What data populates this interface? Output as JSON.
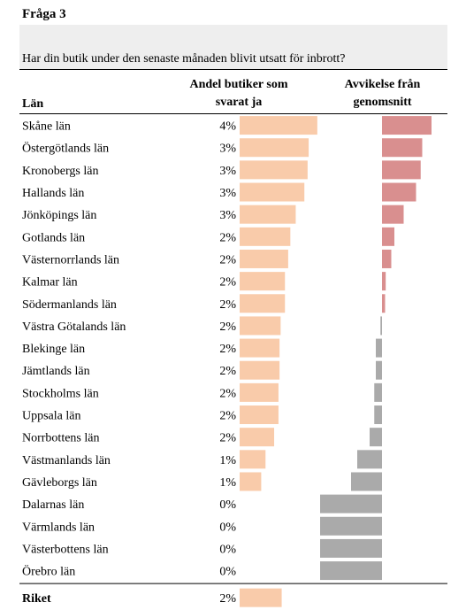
{
  "question_no": "Fråga 3",
  "question": "Har din butik under den senaste månaden blivit utsatt för inbrott?",
  "headers": {
    "region": "Län",
    "share": "Andel butiker som svarat ja",
    "share_l1": "Andel butiker som",
    "share_l2": "svarat ja",
    "deviation_l1": "Avvikelse från",
    "deviation_l2": "genomsnitt"
  },
  "colors": {
    "share_bar": "#f9cbaa",
    "dev_pos": "#d98f8f",
    "dev_neg": "#aaaaaa",
    "header_bg": "#eeeeee"
  },
  "chart_data": {
    "type": "bar",
    "title": "Har din butik under den senaste månaden blivit utsatt för inbrott?",
    "categories": [
      "Skåne län",
      "Östergötlands län",
      "Kronobergs län",
      "Hallands län",
      "Jönköpings län",
      "Gotlands län",
      "Västernorrlands län",
      "Kalmar län",
      "Södermanlands län",
      "Västra Götalands län",
      "Blekinge län",
      "Jämtlands län",
      "Stockholms län",
      "Uppsala län",
      "Norrbottens län",
      "Västmanlands län",
      "Gävleborgs län",
      "Dalarnas län",
      "Värmlands län",
      "Västerbottens län",
      "Örebro län"
    ],
    "series": [
      {
        "name": "Andel butiker som svarat ja",
        "labels": [
          "4%",
          "3%",
          "3%",
          "3%",
          "3%",
          "2%",
          "2%",
          "2%",
          "2%",
          "2%",
          "2%",
          "2%",
          "2%",
          "2%",
          "2%",
          "1%",
          "1%",
          "0%",
          "0%",
          "0%",
          "0%"
        ],
        "values": [
          3.6,
          3.2,
          3.15,
          3.0,
          2.6,
          2.35,
          2.25,
          2.1,
          2.1,
          1.9,
          1.85,
          1.85,
          1.8,
          1.8,
          1.6,
          1.2,
          1.0,
          0,
          0,
          0,
          0
        ]
      },
      {
        "name": "Avvikelse från genomsnitt",
        "values": [
          1.6,
          1.3,
          1.25,
          1.1,
          0.7,
          0.4,
          0.3,
          0.12,
          0.1,
          -0.05,
          -0.2,
          -0.2,
          -0.25,
          -0.25,
          -0.4,
          -0.8,
          -1.0,
          -2.0,
          -2.0,
          -2.0,
          -2.0
        ]
      }
    ],
    "total": {
      "label": "Riket",
      "value_label": "2%",
      "value": 1.95
    }
  }
}
